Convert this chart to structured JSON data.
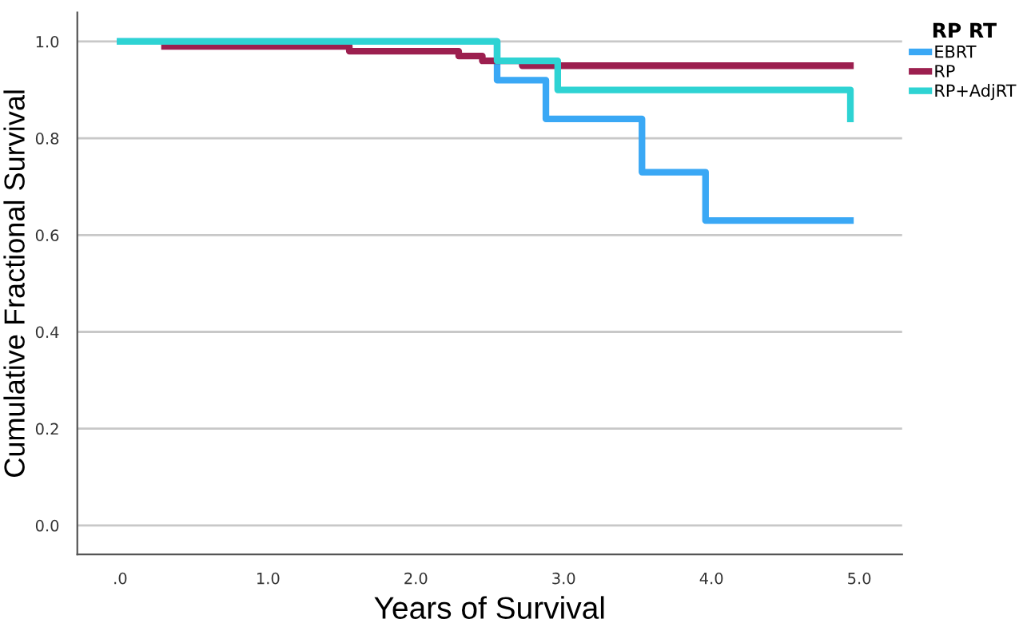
{
  "chart_data": {
    "type": "step",
    "xlabel": "Years of Survival",
    "ylabel": "Cumulative Fractional Survival",
    "legend_title": "RP RT",
    "xlim": [
      -0.29,
      5.29
    ],
    "ylim": [
      -0.06,
      1.06
    ],
    "xticks": [
      {
        "value": 0,
        "label": ".0"
      },
      {
        "value": 1,
        "label": "1.0"
      },
      {
        "value": 2,
        "label": "2.0"
      },
      {
        "value": 3,
        "label": "3.0"
      },
      {
        "value": 4,
        "label": "4.0"
      },
      {
        "value": 5,
        "label": "5.0"
      }
    ],
    "yticks": [
      {
        "value": 0,
        "label": "0.0"
      },
      {
        "value": 0.2,
        "label": "0.2"
      },
      {
        "value": 0.4,
        "label": "0.4"
      },
      {
        "value": 0.6,
        "label": "0.6"
      },
      {
        "value": 0.8,
        "label": "0.8"
      },
      {
        "value": 1,
        "label": "1.0"
      }
    ],
    "grid": "y",
    "legend": "top right",
    "series": [
      {
        "name": "EBRT",
        "color": "#3aa8f5",
        "x": [
          0,
          2.55,
          2.88,
          3.53,
          3.96,
          4.94
        ],
        "values": [
          1.0,
          0.92,
          0.84,
          0.73,
          0.63,
          0.63
        ]
      },
      {
        "name": "RP",
        "color": "#9c1f4f",
        "x": [
          0.3,
          1.55,
          2.29,
          2.45,
          2.72,
          4.94
        ],
        "values": [
          0.99,
          0.98,
          0.97,
          0.96,
          0.95,
          0.95
        ]
      },
      {
        "name": "RP+AdjRT",
        "color": "#2ed3d3",
        "x": [
          0,
          2.55,
          2.96,
          4.94,
          4.94
        ],
        "values": [
          1.0,
          0.96,
          0.9,
          0.9,
          0.84
        ]
      }
    ]
  }
}
